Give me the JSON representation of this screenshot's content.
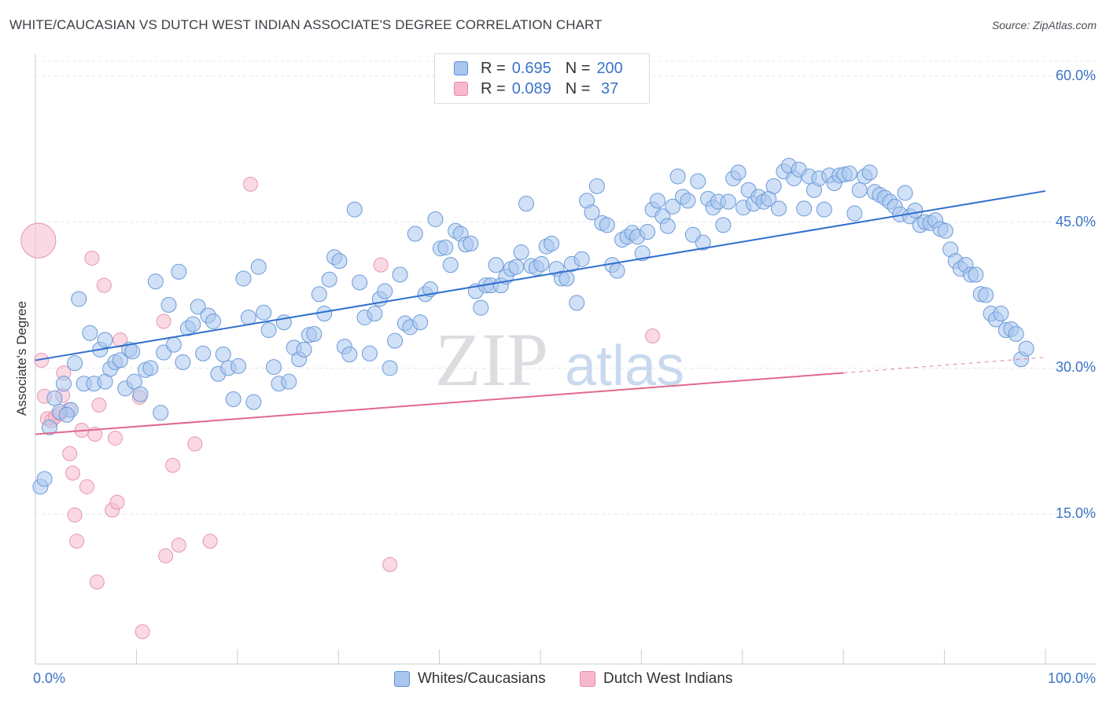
{
  "title": "WHITE/CAUCASIAN VS DUTCH WEST INDIAN ASSOCIATE'S DEGREE CORRELATION CHART",
  "source": "Source: ZipAtlas.com",
  "watermark": "ZIPatlas",
  "legend_stats": [
    {
      "r_label": "R =",
      "r": "0.695",
      "n_label": "N =",
      "n": "200",
      "color": "#a9c6ef",
      "border": "#5b8fd8"
    },
    {
      "r_label": "R =",
      "r": "0.089",
      "n_label": "N =",
      "n": " 37",
      "color": "#f6b9cc",
      "border": "#e58aa8"
    }
  ],
  "bottom_legend": [
    {
      "label": "Whites/Caucasians",
      "color": "#a9c6ef",
      "border": "#5b8fd8"
    },
    {
      "label": "Dutch West Indians",
      "color": "#f6b9cc",
      "border": "#e58aa8"
    }
  ],
  "chart_data": {
    "type": "scatter",
    "title": "WHITE/CAUCASIAN VS DUTCH WEST INDIAN ASSOCIATE'S DEGREE CORRELATION CHART",
    "xlabel": "",
    "ylabel": "Associate's Degree",
    "xlim": [
      0,
      100
    ],
    "ylim": [
      0,
      62
    ],
    "x_tick_labels": [
      "0.0%",
      "100.0%"
    ],
    "y_ticks": [
      15,
      30,
      45,
      60
    ],
    "y_tick_labels": [
      "15.0%",
      "30.0%",
      "45.0%",
      "60.0%"
    ],
    "grid": true,
    "legend_position": "top-center",
    "series": [
      {
        "name": "Whites/Caucasians",
        "color": "#a9c6ef",
        "edge": "#6b9ad9",
        "trend": {
          "x": [
            0,
            100
          ],
          "y": [
            30.8,
            48.2
          ],
          "color": "#2f6fce"
        },
        "points": [
          [
            0.5,
            17.8
          ],
          [
            0.9,
            18.6
          ],
          [
            1.4,
            23.9
          ],
          [
            1.9,
            26.9
          ],
          [
            2.8,
            28.4
          ],
          [
            3.5,
            25.7
          ],
          [
            3.9,
            30.5
          ],
          [
            4.3,
            37.1
          ],
          [
            4.8,
            28.4
          ],
          [
            5.4,
            33.6
          ],
          [
            5.8,
            28.4
          ],
          [
            6.4,
            31.9
          ],
          [
            6.9,
            28.6
          ],
          [
            7.4,
            29.9
          ],
          [
            7.9,
            30.6
          ],
          [
            8.4,
            30.8
          ],
          [
            8.9,
            27.9
          ],
          [
            9.3,
            31.9
          ],
          [
            9.8,
            28.6
          ],
          [
            10.4,
            27.3
          ],
          [
            10.9,
            29.8
          ],
          [
            11.4,
            30.0
          ],
          [
            11.9,
            38.9
          ],
          [
            12.4,
            25.4
          ],
          [
            12.7,
            31.6
          ],
          [
            13.2,
            36.5
          ],
          [
            13.7,
            32.4
          ],
          [
            14.2,
            39.9
          ],
          [
            14.6,
            30.6
          ],
          [
            15.1,
            34.1
          ],
          [
            15.6,
            34.5
          ],
          [
            16.1,
            36.3
          ],
          [
            16.6,
            31.5
          ],
          [
            17.1,
            35.4
          ],
          [
            17.6,
            34.8
          ],
          [
            18.1,
            29.4
          ],
          [
            18.6,
            31.4
          ],
          [
            19.1,
            30.0
          ],
          [
            19.6,
            26.8
          ],
          [
            20.1,
            30.2
          ],
          [
            20.6,
            39.2
          ],
          [
            21.1,
            35.2
          ],
          [
            21.6,
            26.5
          ],
          [
            22.1,
            40.4
          ],
          [
            22.6,
            35.7
          ],
          [
            23.1,
            33.9
          ],
          [
            23.6,
            30.1
          ],
          [
            24.1,
            28.4
          ],
          [
            24.6,
            34.7
          ],
          [
            25.1,
            28.6
          ],
          [
            25.6,
            32.1
          ],
          [
            26.1,
            30.9
          ],
          [
            26.6,
            31.9
          ],
          [
            27.1,
            33.4
          ],
          [
            27.6,
            33.5
          ],
          [
            28.1,
            37.6
          ],
          [
            28.6,
            35.6
          ],
          [
            29.1,
            39.1
          ],
          [
            29.6,
            41.4
          ],
          [
            30.1,
            41.0
          ],
          [
            30.6,
            32.2
          ],
          [
            31.1,
            31.4
          ],
          [
            31.6,
            46.3
          ],
          [
            32.1,
            38.8
          ],
          [
            32.6,
            35.2
          ],
          [
            33.1,
            31.5
          ],
          [
            33.6,
            35.6
          ],
          [
            34.1,
            37.1
          ],
          [
            34.6,
            37.9
          ],
          [
            35.1,
            30.0
          ],
          [
            35.6,
            32.8
          ],
          [
            36.1,
            39.6
          ],
          [
            36.6,
            34.6
          ],
          [
            37.1,
            34.2
          ],
          [
            37.6,
            43.8
          ],
          [
            38.1,
            34.7
          ],
          [
            38.6,
            37.6
          ],
          [
            39.1,
            38.1
          ],
          [
            39.6,
            45.3
          ],
          [
            40.1,
            42.3
          ],
          [
            40.6,
            42.4
          ],
          [
            41.1,
            40.6
          ],
          [
            41.6,
            44.1
          ],
          [
            42.1,
            43.8
          ],
          [
            42.6,
            42.7
          ],
          [
            43.1,
            42.8
          ],
          [
            43.6,
            37.9
          ],
          [
            44.1,
            36.2
          ],
          [
            44.6,
            38.5
          ],
          [
            45.1,
            38.5
          ],
          [
            45.6,
            40.6
          ],
          [
            46.1,
            38.5
          ],
          [
            46.6,
            39.4
          ],
          [
            47.1,
            40.2
          ],
          [
            47.6,
            40.4
          ],
          [
            48.1,
            41.9
          ],
          [
            48.6,
            46.9
          ],
          [
            49.1,
            40.5
          ],
          [
            49.6,
            40.3
          ],
          [
            50.1,
            40.7
          ],
          [
            50.6,
            42.5
          ],
          [
            51.1,
            42.8
          ],
          [
            51.6,
            40.2
          ],
          [
            52.1,
            39.2
          ],
          [
            52.6,
            39.2
          ],
          [
            53.1,
            40.7
          ],
          [
            53.6,
            36.7
          ],
          [
            54.1,
            41.2
          ],
          [
            54.6,
            47.2
          ],
          [
            55.1,
            46.0
          ],
          [
            55.6,
            48.7
          ],
          [
            56.1,
            44.9
          ],
          [
            56.6,
            44.7
          ],
          [
            57.1,
            40.6
          ],
          [
            57.6,
            40.0
          ],
          [
            58.1,
            43.2
          ],
          [
            58.6,
            43.5
          ],
          [
            59.1,
            43.9
          ],
          [
            59.6,
            43.5
          ],
          [
            60.1,
            41.8
          ],
          [
            60.6,
            44.0
          ],
          [
            61.1,
            46.3
          ],
          [
            61.6,
            47.2
          ],
          [
            62.1,
            45.6
          ],
          [
            62.6,
            44.6
          ],
          [
            63.1,
            46.6
          ],
          [
            63.6,
            49.7
          ],
          [
            64.1,
            47.6
          ],
          [
            64.6,
            47.2
          ],
          [
            65.1,
            43.7
          ],
          [
            65.6,
            49.2
          ],
          [
            66.1,
            42.9
          ],
          [
            66.6,
            47.4
          ],
          [
            67.1,
            46.5
          ],
          [
            67.6,
            47.1
          ],
          [
            68.1,
            44.7
          ],
          [
            68.6,
            47.1
          ],
          [
            69.1,
            49.5
          ],
          [
            69.6,
            50.1
          ],
          [
            70.1,
            46.5
          ],
          [
            70.6,
            48.3
          ],
          [
            71.1,
            46.9
          ],
          [
            71.6,
            47.6
          ],
          [
            72.1,
            47.1
          ],
          [
            72.6,
            47.4
          ],
          [
            73.1,
            48.7
          ],
          [
            73.6,
            46.4
          ],
          [
            74.1,
            50.2
          ],
          [
            74.6,
            50.8
          ],
          [
            75.1,
            49.5
          ],
          [
            75.6,
            50.4
          ],
          [
            76.1,
            46.4
          ],
          [
            76.6,
            49.7
          ],
          [
            77.1,
            48.3
          ],
          [
            77.6,
            49.5
          ],
          [
            78.1,
            46.3
          ],
          [
            78.6,
            49.8
          ],
          [
            79.1,
            49.0
          ],
          [
            79.6,
            49.8
          ],
          [
            80.1,
            49.9
          ],
          [
            80.6,
            50.0
          ],
          [
            81.1,
            45.9
          ],
          [
            81.6,
            48.3
          ],
          [
            82.1,
            49.7
          ],
          [
            82.6,
            50.1
          ],
          [
            83.1,
            48.1
          ],
          [
            83.6,
            47.8
          ],
          [
            84.1,
            47.5
          ],
          [
            84.6,
            47.1
          ],
          [
            85.1,
            46.6
          ],
          [
            85.6,
            45.8
          ],
          [
            86.1,
            48.0
          ],
          [
            86.6,
            45.6
          ],
          [
            87.1,
            46.2
          ],
          [
            87.6,
            44.7
          ],
          [
            88.1,
            45.0
          ],
          [
            88.6,
            44.9
          ],
          [
            89.1,
            45.2
          ],
          [
            89.6,
            44.3
          ],
          [
            90.1,
            44.1
          ],
          [
            90.6,
            42.2
          ],
          [
            91.1,
            41.0
          ],
          [
            91.6,
            40.2
          ],
          [
            92.1,
            40.6
          ],
          [
            92.6,
            39.6
          ],
          [
            93.1,
            39.6
          ],
          [
            93.6,
            37.6
          ],
          [
            94.1,
            37.5
          ],
          [
            94.6,
            35.6
          ],
          [
            95.1,
            35.0
          ],
          [
            95.6,
            35.6
          ],
          [
            96.1,
            33.9
          ],
          [
            96.6,
            34.0
          ],
          [
            97.1,
            33.5
          ],
          [
            97.6,
            30.9
          ],
          [
            98.1,
            32.0
          ],
          [
            2.4,
            25.5
          ],
          [
            3.1,
            25.2
          ],
          [
            6.9,
            32.9
          ],
          [
            9.6,
            31.7
          ]
        ]
      },
      {
        "name": "Dutch West Indians",
        "color": "#f6b9cc",
        "edge": "#e796b1",
        "trend": {
          "x": [
            0,
            80
          ],
          "y": [
            23.2,
            29.5
          ],
          "dashed_to": {
            "x": 100,
            "y": 31.1
          },
          "color": "#e2688f"
        },
        "points": [
          [
            0.3,
            43.1
          ],
          [
            0.6,
            30.8
          ],
          [
            0.9,
            27.1
          ],
          [
            1.2,
            24.8
          ],
          [
            1.6,
            24.6
          ],
          [
            2.0,
            25.0
          ],
          [
            2.4,
            25.3
          ],
          [
            2.7,
            27.2
          ],
          [
            2.8,
            29.5
          ],
          [
            3.3,
            25.7
          ],
          [
            3.4,
            21.2
          ],
          [
            3.7,
            19.2
          ],
          [
            3.9,
            14.9
          ],
          [
            4.1,
            12.2
          ],
          [
            4.6,
            23.6
          ],
          [
            5.1,
            17.8
          ],
          [
            5.6,
            41.3
          ],
          [
            5.9,
            23.2
          ],
          [
            6.1,
            8.0
          ],
          [
            6.3,
            26.2
          ],
          [
            6.8,
            38.5
          ],
          [
            7.6,
            15.4
          ],
          [
            7.9,
            22.8
          ],
          [
            8.1,
            16.2
          ],
          [
            8.4,
            32.9
          ],
          [
            10.3,
            27.0
          ],
          [
            10.6,
            2.9
          ],
          [
            12.7,
            34.8
          ],
          [
            12.9,
            10.7
          ],
          [
            13.6,
            20.0
          ],
          [
            14.2,
            11.8
          ],
          [
            15.8,
            22.2
          ],
          [
            17.3,
            12.2
          ],
          [
            21.3,
            48.9
          ],
          [
            34.2,
            40.6
          ],
          [
            35.1,
            9.8
          ],
          [
            61.1,
            33.3
          ]
        ]
      }
    ]
  }
}
